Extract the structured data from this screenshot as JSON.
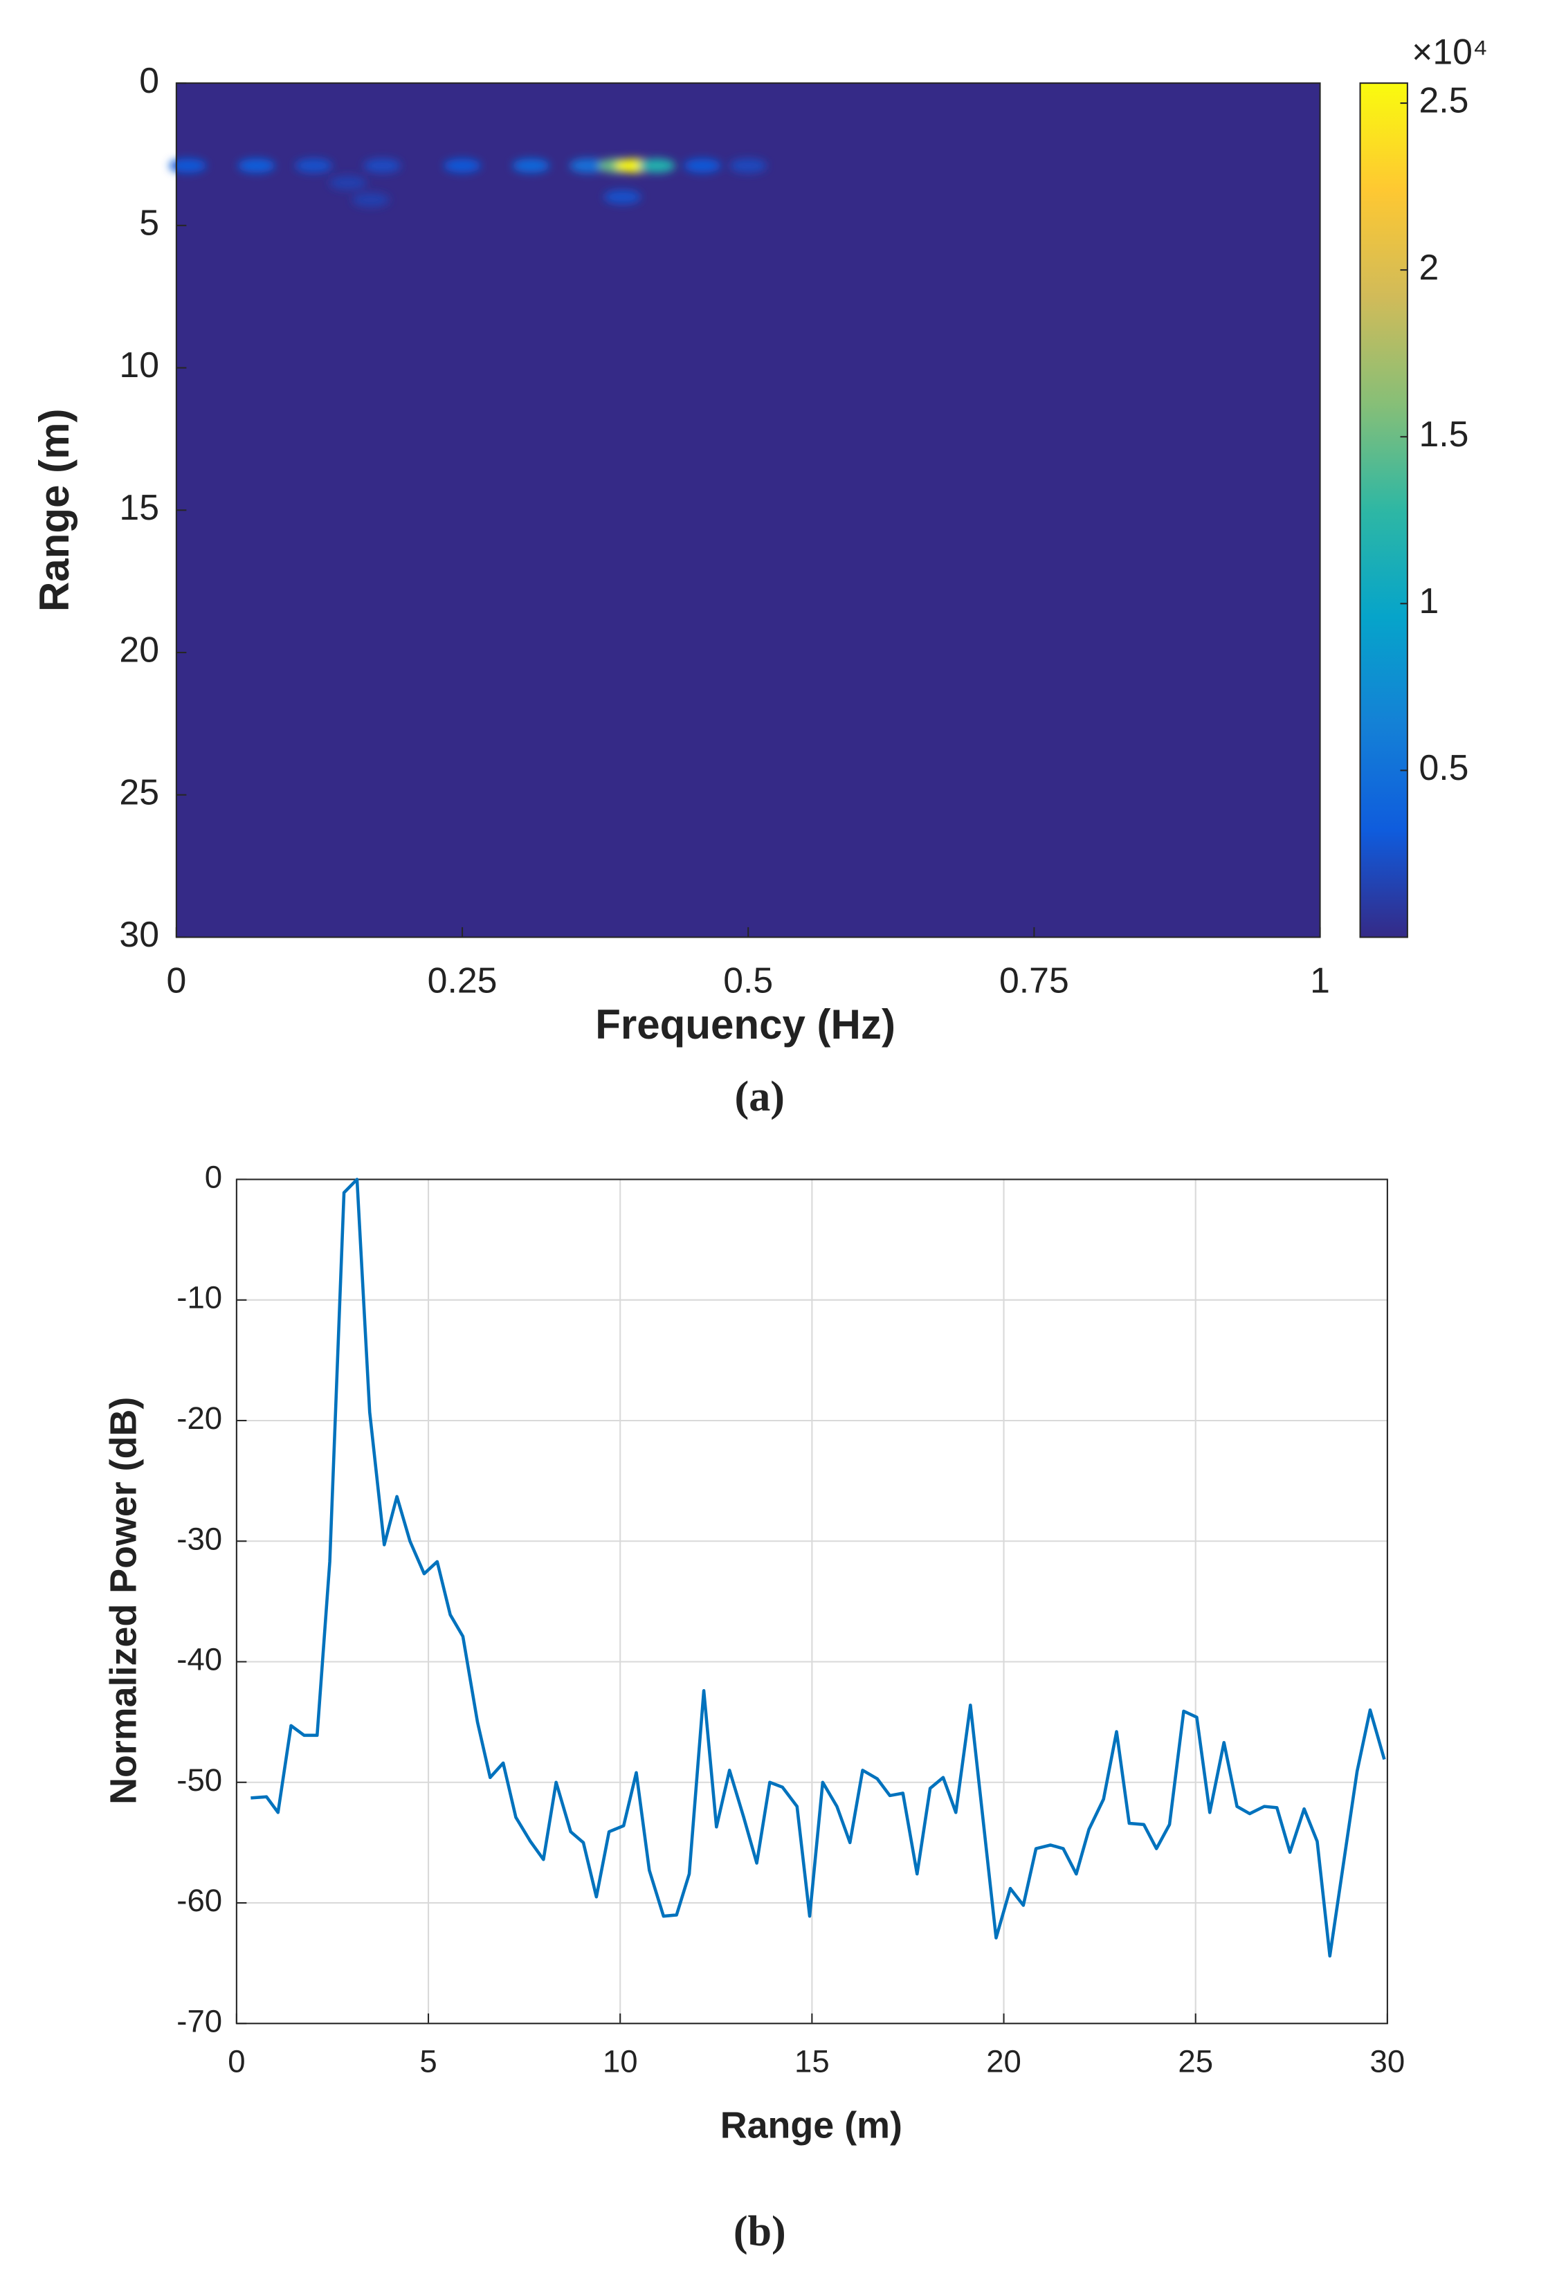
{
  "chart_data": [
    {
      "type": "heatmap",
      "xlabel": "Frequency (Hz)",
      "ylabel": "Range (m)",
      "caption": "(a)",
      "xlim": [
        0,
        1
      ],
      "xticks": [
        0,
        0.25,
        0.5,
        0.75,
        1
      ],
      "ylim": [
        0,
        30
      ],
      "yticks": [
        0,
        5,
        10,
        15,
        20,
        25,
        30
      ],
      "y_reversed": true,
      "cells": [
        {
          "x": 0.01,
          "y": 2.9,
          "value": 3000
        },
        {
          "x": 0.07,
          "y": 2.9,
          "value": 3500
        },
        {
          "x": 0.12,
          "y": 2.9,
          "value": 2500
        },
        {
          "x": 0.18,
          "y": 2.9,
          "value": 2200
        },
        {
          "x": 0.25,
          "y": 2.9,
          "value": 3000
        },
        {
          "x": 0.31,
          "y": 2.9,
          "value": 4200
        },
        {
          "x": 0.36,
          "y": 2.9,
          "value": 5000
        },
        {
          "x": 0.385,
          "y": 2.9,
          "value": 15000
        },
        {
          "x": 0.4,
          "y": 2.9,
          "value": 25500
        },
        {
          "x": 0.42,
          "y": 2.9,
          "value": 12000
        },
        {
          "x": 0.46,
          "y": 2.9,
          "value": 3000
        },
        {
          "x": 0.5,
          "y": 2.9,
          "value": 2000
        },
        {
          "x": 0.15,
          "y": 3.5,
          "value": 1500
        },
        {
          "x": 0.17,
          "y": 4.1,
          "value": 1500
        },
        {
          "x": 0.39,
          "y": 4.0,
          "value": 2500
        }
      ],
      "clim": [
        0,
        25600
      ],
      "colorbar_ticks": [
        {
          "value": 5000,
          "label": "0.5"
        },
        {
          "value": 10000,
          "label": "1"
        },
        {
          "value": 15000,
          "label": "1.5"
        },
        {
          "value": 20000,
          "label": "2"
        },
        {
          "value": 25000,
          "label": "2.5"
        }
      ],
      "colorbar_scale_label": "×10⁴",
      "colormap": [
        "#352a87",
        "#0f5cdd",
        "#1481d6",
        "#06a4ca",
        "#2eb7a4",
        "#87bf77",
        "#d1bb59",
        "#fec832",
        "#f9fb0e"
      ]
    },
    {
      "type": "line",
      "xlabel": "Range (m)",
      "ylabel": "Normalized Power (dB)",
      "caption": "(b)",
      "xlim": [
        0,
        30
      ],
      "xticks": [
        0,
        5,
        10,
        15,
        20,
        25,
        30
      ],
      "ylim": [
        -70,
        0
      ],
      "yticks": [
        -70,
        -60,
        -50,
        -40,
        -30,
        -20,
        -10,
        0
      ],
      "grid": true,
      "color": "#0072bd",
      "x": [
        0.37,
        0.78,
        1.08,
        1.42,
        1.76,
        2.1,
        2.43,
        2.8,
        3.14,
        3.47,
        3.85,
        4.18,
        4.52,
        4.89,
        5.23,
        5.57,
        5.9,
        6.28,
        6.61,
        6.95,
        7.28,
        7.66,
        8,
        8.33,
        8.71,
        9.04,
        9.38,
        9.71,
        10.09,
        10.42,
        10.76,
        11.13,
        11.47,
        11.8,
        12.18,
        12.51,
        12.85,
        13.22,
        13.56,
        13.9,
        14.23,
        14.61,
        14.94,
        15.28,
        15.65,
        15.99,
        16.32,
        16.7,
        17.03,
        17.37,
        17.74,
        18.08,
        18.42,
        18.75,
        19.13,
        19.46,
        19.8,
        20.17,
        20.51,
        20.84,
        21.22,
        21.55,
        21.89,
        22.22,
        22.6,
        22.94,
        23.27,
        23.65,
        23.98,
        24.32,
        24.69,
        25.03,
        25.37,
        25.74,
        26.08,
        26.41,
        26.79,
        27.12,
        27.46,
        27.83,
        28.17,
        28.5,
        28.88,
        29.21,
        29.55,
        29.92
      ],
      "values": [
        -51.3,
        -51.2,
        -52.5,
        -45.3,
        -46.1,
        -46.1,
        -31.7,
        -1.1,
        0,
        -19.3,
        -30.3,
        -26.3,
        -30,
        -32.7,
        -31.7,
        -36.1,
        -37.9,
        -45,
        -49.6,
        -48.4,
        -52.9,
        -54.9,
        -56.4,
        -50,
        -54.1,
        -55,
        -59.5,
        -54.1,
        -53.6,
        -49.2,
        -57.3,
        -61.1,
        -61,
        -57.6,
        -42.4,
        -53.7,
        -49,
        -52.9,
        -56.7,
        -50,
        -50.4,
        -52,
        -61.1,
        -50,
        -52,
        -55,
        -49,
        -49.7,
        -51.1,
        -50.9,
        -57.6,
        -50.5,
        -49.6,
        -52.5,
        -43.6,
        -53.1,
        -62.9,
        -58.8,
        -60.2,
        -55.5,
        -55.2,
        -55.5,
        -57.6,
        -53.9,
        -51.4,
        -45.8,
        -53.4,
        -53.5,
        -55.5,
        -53.5,
        -44.1,
        -44.6,
        -52.5,
        -46.7,
        -52,
        -52.6,
        -52,
        -52.1,
        -55.8,
        -52.2,
        -54.9,
        -64.4,
        -56.2,
        -49.1,
        -44,
        -48.1
      ]
    }
  ]
}
